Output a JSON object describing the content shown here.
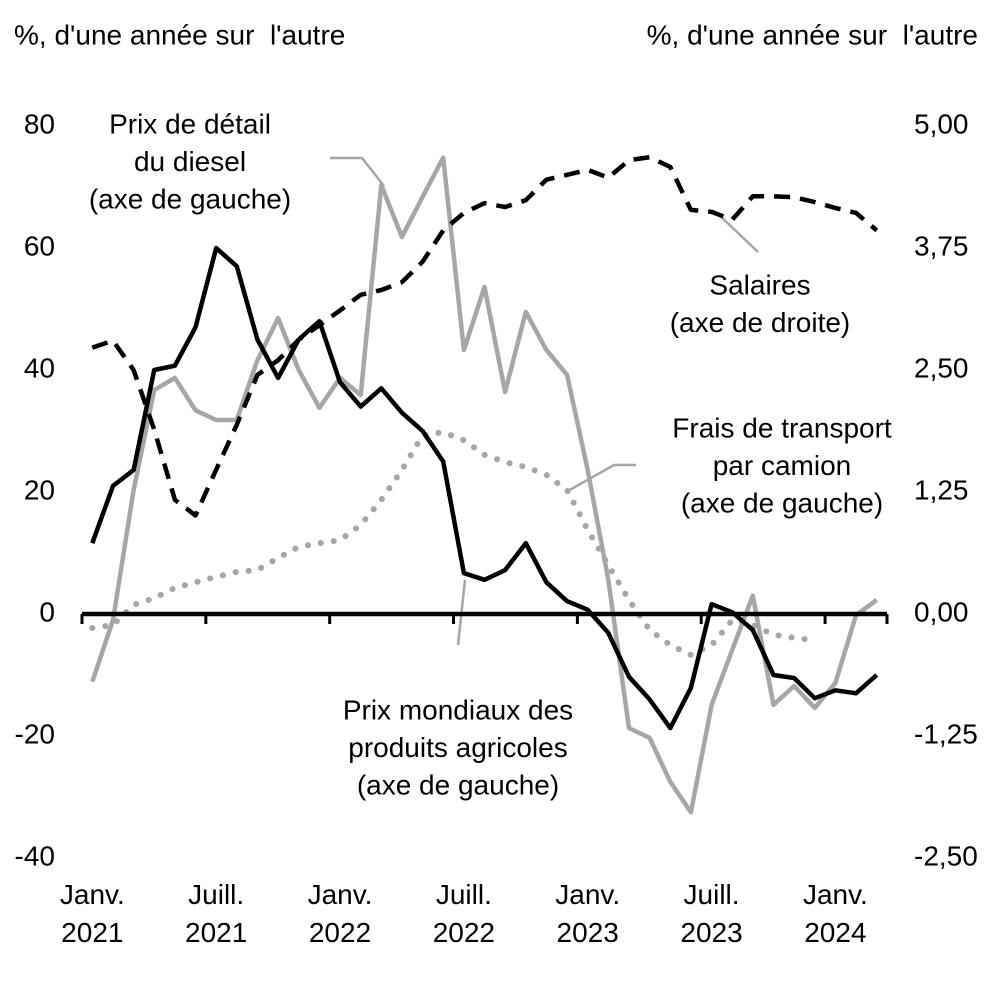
{
  "chart_data": {
    "type": "line",
    "y_title": "%, d'une année sur  l'autre",
    "y2_title": "%, d'une année sur  l'autre",
    "categories": [
      "Janv. 2021",
      null,
      null,
      null,
      null,
      null,
      "Juill. 2021",
      null,
      null,
      null,
      null,
      null,
      "Janv. 2022",
      null,
      null,
      null,
      null,
      null,
      "Juill. 2022",
      null,
      null,
      null,
      null,
      null,
      "Janv. 2023",
      null,
      null,
      null,
      null,
      null,
      "Juill. 2023",
      null,
      null,
      null,
      null,
      null,
      "Janv. 2024",
      null,
      null
    ],
    "ylim": [
      -40,
      80
    ],
    "yticks": [
      -40,
      -20,
      0,
      20,
      40,
      60,
      80
    ],
    "y2lim": [
      -2.5,
      5
    ],
    "y2ticks": [
      {
        "value": -2.5,
        "label": "-2,50"
      },
      {
        "value": -1.25,
        "label": "-1,25"
      },
      {
        "value": 0,
        "label": "0,00"
      },
      {
        "value": 1.25,
        "label": "1,25"
      },
      {
        "value": 2.5,
        "label": "2,50"
      },
      {
        "value": 3.75,
        "label": "3,75"
      },
      {
        "value": 5,
        "label": "5,00"
      }
    ],
    "grid": false,
    "series": [
      {
        "color": "#a6a6a6",
        "line_style": "solid",
        "axis": "y",
        "values": [
          -11.1,
          -1,
          20.3,
          36.7,
          38.7,
          33.4,
          31.8,
          31.8,
          41.6,
          48.5,
          40,
          33.8,
          38.7,
          35.9,
          70.3,
          61.8,
          68.4,
          74.8,
          43.3,
          53.6,
          36.4,
          49.5,
          43.3,
          39.2,
          23.6,
          5.6,
          -18.7,
          -20.3,
          -27.5,
          -32.5,
          -14.9,
          -5.9,
          3,
          -14.9,
          -11.8,
          -15.4,
          -11.3,
          -0.2,
          2.3
        ]
      },
      {
        "color": "#a6a6a6",
        "line_style": "dotted",
        "axis": "y",
        "values": [
          -2.3,
          -1.8,
          1.5,
          2.6,
          4.3,
          5.2,
          6.1,
          6.9,
          7.2,
          9.2,
          11,
          11.6,
          12.1,
          14.6,
          18.7,
          23.6,
          29.3,
          29.8,
          28.5,
          26.1,
          24.9,
          24.1,
          22.8,
          20.3,
          13.8,
          8,
          2.3,
          -2.6,
          -5.1,
          -6.7,
          -5.1,
          -1,
          -1.8,
          -3.4,
          -3.9,
          -4.3,
          null,
          null,
          null
        ]
      },
      {
        "color": "#000000",
        "line_style": "dashed",
        "axis": "y2",
        "values": [
          2.73,
          2.8,
          2.5,
          1.89,
          1.17,
          1.01,
          1.48,
          1.94,
          2.45,
          2.6,
          2.81,
          2.96,
          3.11,
          3.27,
          3.32,
          3.4,
          3.61,
          3.93,
          4.11,
          4.21,
          4.17,
          4.24,
          4.45,
          4.5,
          4.55,
          4.47,
          4.65,
          4.68,
          4.58,
          4.14,
          4.12,
          4.04,
          4.28,
          4.28,
          4.27,
          4.22,
          4.16,
          4.11,
          3.93
        ]
      },
      {
        "color": "#000000",
        "line_style": "solid",
        "axis": "y",
        "values": [
          11.6,
          21,
          23.6,
          40,
          40.7,
          47,
          60,
          57,
          45,
          38.7,
          45,
          48,
          38,
          34,
          37,
          33,
          30,
          25,
          6.7,
          5.6,
          7.2,
          11.6,
          5.2,
          2.1,
          0.7,
          -3.1,
          -10.3,
          -14,
          -18.7,
          -12.1,
          1.6,
          0.3,
          -2.6,
          -10,
          -10.5,
          -13.8,
          -12.5,
          -13,
          -10
        ]
      }
    ],
    "annotations": [
      {
        "lines": [
          "Prix de détail",
          "du diesel",
          "(axe de gauche)"
        ]
      },
      {
        "lines": [
          "Salaires",
          "(axe de droite)"
        ]
      },
      {
        "lines": [
          "Frais de transport",
          "par camion",
          "(axe de gauche)"
        ]
      },
      {
        "lines": [
          "Prix mondiaux des",
          "produits agricoles",
          "(axe de gauche)"
        ]
      }
    ]
  }
}
